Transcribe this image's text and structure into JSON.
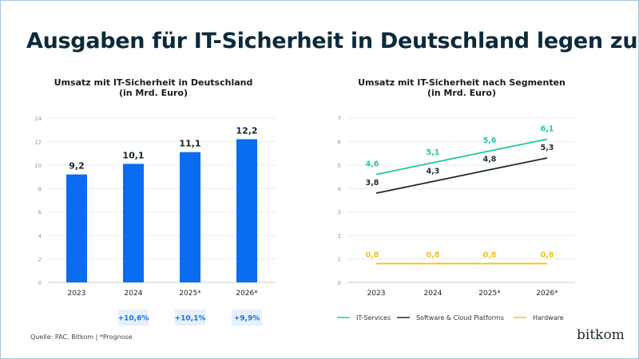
{
  "title": "Ausgaben für IT-Sicherheit in Deutschland legen zu",
  "source": "Quelle: PAC, Bitkom | *Prognose",
  "logo": "bitkom",
  "chart_data": [
    {
      "type": "bar",
      "title_line1": "Umsatz mit IT-Sicherheit in Deutschland",
      "title_line2": "(in Mrd. Euro)",
      "categories": [
        "2023",
        "2024",
        "2025*",
        "2026*"
      ],
      "values": [
        9.2,
        10.1,
        11.1,
        12.2
      ],
      "value_labels": [
        "9,2",
        "10,1",
        "11,1",
        "12,2"
      ],
      "growth_labels": [
        "",
        "+10,6%",
        "+10,1%",
        "+9,9%"
      ],
      "ylim": [
        0,
        14
      ],
      "yticks": [
        0,
        2,
        4,
        6,
        8,
        10,
        12,
        14
      ],
      "grid": true,
      "color": "#0a6cf0",
      "badge_color": "#e6f1fc"
    },
    {
      "type": "line",
      "title_line1": "Umsatz mit IT-Sicherheit nach Segmenten",
      "title_line2": "(in Mrd. Euro)",
      "categories": [
        "2023",
        "2024",
        "2025*",
        "2026*"
      ],
      "ylim": [
        0,
        7
      ],
      "yticks": [
        0,
        1,
        2,
        3,
        4,
        5,
        6,
        7
      ],
      "grid": true,
      "legend_position": "bottom",
      "series": [
        {
          "name": "IT-Services",
          "values": [
            4.6,
            5.1,
            5.6,
            6.1
          ],
          "labels": [
            "4,6",
            "5,1",
            "5,6",
            "6,1"
          ],
          "color": "#1fc8a6"
        },
        {
          "name": "Software & Cloud Platforms",
          "values": [
            3.8,
            4.3,
            4.8,
            5.3
          ],
          "labels": [
            "3,8",
            "4,3",
            "4,8",
            "5,3"
          ],
          "color": "#1b2a33"
        },
        {
          "name": "Hardware",
          "values": [
            0.8,
            0.8,
            0.8,
            0.8
          ],
          "labels": [
            "0,8",
            "0,8",
            "0,8",
            "0,8"
          ],
          "color": "#f2c21b"
        }
      ]
    }
  ]
}
